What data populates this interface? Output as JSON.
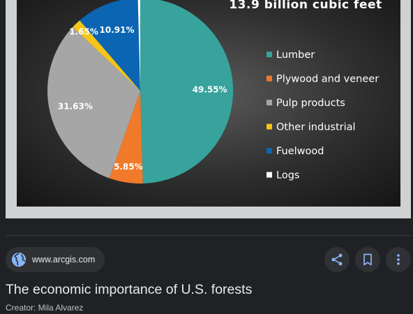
{
  "chart_data": {
    "type": "pie",
    "title": "13.9 billion cubic feet",
    "categories": [
      "Lumber",
      "Plywood and veneer",
      "Pulp products",
      "Other industrial",
      "Fuelwood",
      "Logs"
    ],
    "values": [
      49.55,
      5.85,
      31.63,
      1.65,
      10.91,
      0.41
    ],
    "value_labels": [
      "49.55%",
      "5.85%",
      "31.63%",
      "1.65%",
      "10.91%",
      ""
    ],
    "colors": [
      "#37a39c",
      "#f07a2a",
      "#a6a6a6",
      "#f5c518",
      "#0c65b3",
      "#ffffff"
    ],
    "legend_position": "right"
  },
  "source": {
    "domain": "www.arcgis.com",
    "icon": "globe-icon"
  },
  "actions": [
    {
      "name": "share-button",
      "icon": "share-icon"
    },
    {
      "name": "bookmark-button",
      "icon": "bookmark-icon"
    },
    {
      "name": "more-options-button",
      "icon": "more-vert-icon"
    }
  ],
  "result": {
    "title": "The economic importance of U.S. forests",
    "creator": "Creator: Mila Alvarez"
  }
}
